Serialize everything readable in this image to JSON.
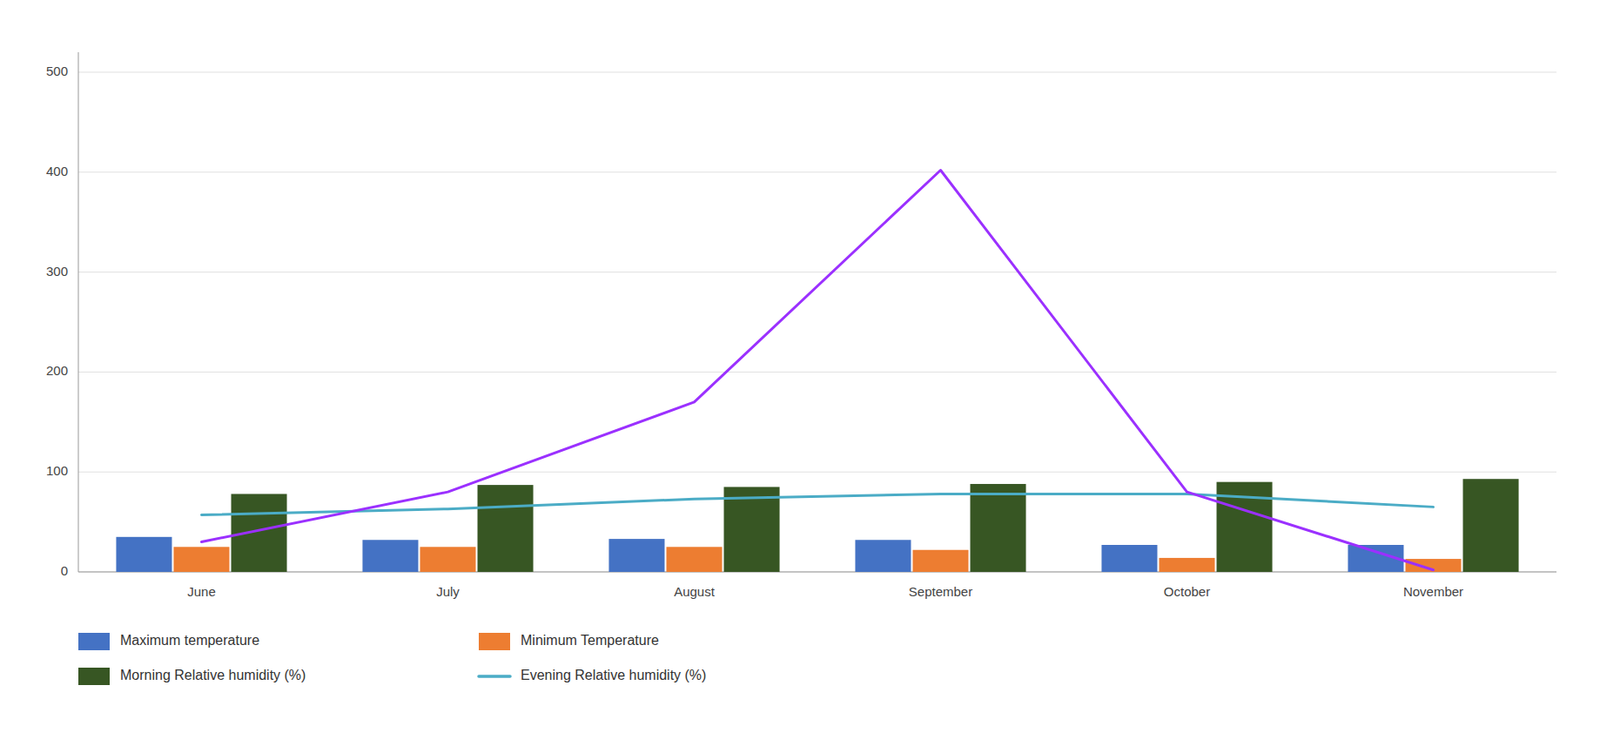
{
  "chart_data": {
    "type": "bar",
    "categories": [
      "June",
      "July",
      "August",
      "September",
      "October",
      "November"
    ],
    "series": [
      {
        "name": "Maximum temperature",
        "color": "#4472C4",
        "values": [
          35,
          32,
          33,
          32,
          27,
          27
        ]
      },
      {
        "name": "Minimum Temperature",
        "color": "#ED7D31",
        "values": [
          25,
          25,
          25,
          22,
          14,
          13
        ]
      },
      {
        "name": "Morning Relative humidity (%)",
        "color": "#375623",
        "values": [
          78,
          87,
          85,
          88,
          90,
          93
        ]
      },
      {
        "name": "Evening Relative humidity (%)",
        "type": "line",
        "color": "#4BACC6",
        "values": [
          57,
          63,
          73,
          78,
          78,
          65
        ]
      },
      {
        "type": "line",
        "color": "#9B30FF",
        "values": [
          30,
          80,
          170,
          402,
          80,
          2
        ]
      }
    ],
    "ylim": [
      0,
      520
    ],
    "yticks": [
      0,
      100,
      200,
      300,
      400,
      500
    ],
    "grid": true,
    "legend": "bottom"
  }
}
